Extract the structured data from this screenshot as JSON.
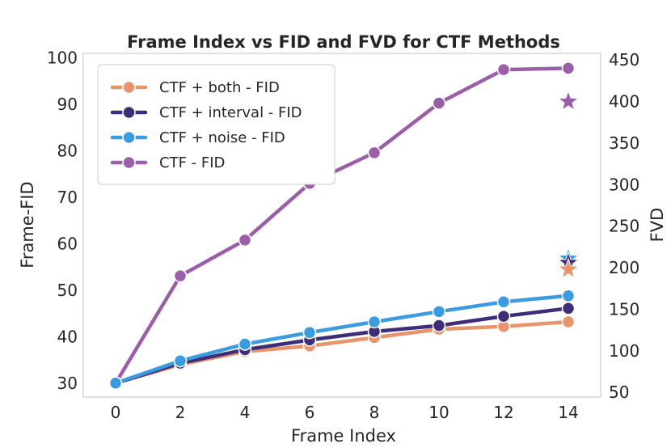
{
  "chart_data": {
    "type": "line",
    "title": "Frame Index vs FID and FVD for CTF Methods",
    "xlabel": "Frame Index",
    "ylabel": "Frame-FID",
    "y2label": "FVD",
    "x": [
      0,
      2,
      4,
      6,
      8,
      10,
      12,
      14
    ],
    "xlim": [
      -1,
      15
    ],
    "ylim": [
      27,
      101
    ],
    "y2lim": [
      44.4,
      458
    ],
    "xticks": [
      "0",
      "2",
      "4",
      "6",
      "8",
      "10",
      "12",
      "14"
    ],
    "yticks": [
      "30",
      "40",
      "50",
      "60",
      "70",
      "80",
      "90",
      "100"
    ],
    "y2ticks": [
      "50",
      "100",
      "150",
      "200",
      "250",
      "300",
      "350",
      "400",
      "450"
    ],
    "legend_position": "upper-left",
    "grid": false,
    "series": [
      {
        "name": "CTF + both - FID",
        "color": "#e8956b",
        "values": [
          30.0,
          34.0,
          36.8,
          38.0,
          39.8,
          41.6,
          42.2,
          43.2
        ]
      },
      {
        "name": "CTF + interval - FID",
        "color": "#3e2e7a",
        "values": [
          30.0,
          34.3,
          37.2,
          39.3,
          41.1,
          42.4,
          44.4,
          46.1
        ]
      },
      {
        "name": "CTF + noise - FID",
        "color": "#3a9be0",
        "values": [
          30.0,
          34.8,
          38.4,
          40.9,
          43.2,
          45.4,
          47.5,
          48.8
        ]
      },
      {
        "name": "CTF - FID",
        "color": "#9a5fa8",
        "values": [
          30.0,
          53.1,
          60.8,
          73.0,
          79.6,
          90.3,
          97.5,
          97.8
        ]
      }
    ],
    "fvd_markers": [
      {
        "series": "CTF + noise",
        "color": "#3a9be0",
        "x": 14,
        "value": 211
      },
      {
        "series": "CTF + interval",
        "color": "#3e2e7a",
        "x": 14,
        "value": 206
      },
      {
        "series": "CTF + both",
        "color": "#e8956b",
        "x": 14,
        "value": 198
      },
      {
        "series": "CTF",
        "color": "#9a5fa8",
        "x": 14,
        "value": 400
      }
    ]
  }
}
